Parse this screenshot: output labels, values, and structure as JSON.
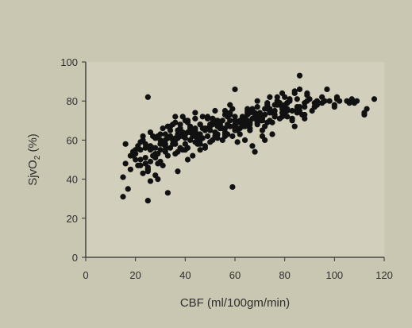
{
  "chart_data": {
    "type": "scatter",
    "title": "",
    "xlabel": "CBF (ml/100gm/min)",
    "ylabel_parts": {
      "main": "SjvO",
      "sub": "2",
      "unit": " (%)"
    },
    "xlim": [
      0,
      120
    ],
    "ylim": [
      0,
      100
    ],
    "x_ticks": [
      "0",
      "20",
      "40",
      "60",
      "80",
      "100",
      "120"
    ],
    "y_ticks": [
      "0",
      "20",
      "40",
      "60",
      "80",
      "100"
    ],
    "grid": false,
    "legend": "none",
    "colors": {
      "background": "#c9c6b2",
      "plot_area": "#d2cfbc",
      "points": "#111111",
      "axis": "#2f2f2f"
    },
    "x": [
      15,
      15,
      16,
      17,
      18,
      19,
      20,
      21,
      22,
      23,
      24,
      25,
      25,
      26,
      27,
      28,
      29,
      30,
      31,
      32,
      33,
      34,
      35,
      36,
      37,
      38,
      39,
      40,
      41,
      42,
      43,
      44,
      45,
      46,
      47,
      48,
      49,
      50,
      51,
      52,
      53,
      54,
      55,
      56,
      57,
      58,
      59,
      60,
      61,
      62,
      63,
      64,
      65,
      66,
      67,
      68,
      69,
      70,
      71,
      72,
      73,
      74,
      75,
      76,
      77,
      78,
      79,
      80,
      81,
      82,
      83,
      84,
      85,
      86,
      88,
      90,
      92,
      95,
      98,
      100,
      105,
      109,
      112,
      116,
      18,
      20,
      22,
      24,
      26,
      28,
      30,
      32,
      34,
      36,
      38,
      40,
      42,
      44,
      46,
      48,
      50,
      52,
      54,
      56,
      58,
      60,
      62,
      64,
      66,
      68,
      70,
      72,
      74,
      76,
      78,
      80,
      22,
      24,
      26,
      28,
      30,
      32,
      34,
      36,
      38,
      40,
      42,
      44,
      46,
      48,
      50,
      52,
      54,
      56,
      58,
      60,
      62,
      64,
      66,
      68,
      70,
      25,
      27,
      29,
      31,
      33,
      35,
      37,
      39,
      41,
      43,
      45,
      47,
      49,
      51,
      53,
      55,
      57,
      59,
      61,
      63,
      65,
      67,
      69,
      71,
      73,
      75,
      77,
      79,
      81,
      83,
      85,
      87,
      89,
      20,
      23,
      26,
      29,
      32,
      35,
      38,
      41,
      44,
      47,
      50,
      53,
      56,
      59,
      62,
      65,
      68,
      71,
      74,
      77,
      80,
      83,
      86,
      89,
      92,
      21,
      25,
      29,
      33,
      37,
      41,
      45,
      49,
      53,
      57,
      61,
      65,
      69,
      73,
      77,
      81,
      85,
      89,
      93,
      97,
      101,
      112,
      16,
      19,
      22,
      25,
      28,
      31,
      34,
      37,
      40,
      43,
      46,
      49,
      52,
      55,
      58,
      61,
      64,
      67,
      70,
      73,
      76,
      79,
      82,
      85,
      88,
      27,
      30,
      33,
      36,
      39,
      42,
      45,
      48,
      51,
      54,
      57,
      60,
      63,
      66,
      69,
      72,
      75,
      78,
      81,
      84,
      24,
      28,
      32,
      36,
      40,
      44,
      48,
      52,
      56,
      60,
      64,
      68,
      72,
      76,
      80,
      84,
      88,
      92,
      96,
      100,
      26,
      31,
      36,
      41,
      46,
      51,
      56,
      61,
      66,
      71,
      76,
      81,
      86,
      91,
      96,
      101,
      106,
      23,
      30,
      37,
      44,
      51,
      58,
      65,
      72,
      79,
      86,
      93,
      107,
      25,
      32,
      39,
      46,
      53,
      60,
      67,
      74,
      81,
      88,
      95,
      102,
      108,
      113
    ],
    "y": [
      31,
      41,
      58,
      35,
      45,
      52,
      50,
      47,
      55,
      62,
      48,
      82,
      29,
      57,
      52,
      61,
      40,
      55,
      66,
      60,
      33,
      67,
      58,
      72,
      63,
      68,
      55,
      70,
      64,
      66,
      52,
      74,
      62,
      68,
      61,
      57,
      72,
      65,
      60,
      75,
      63,
      67,
      70,
      64,
      68,
      78,
      36,
      86,
      66,
      63,
      72,
      60,
      75,
      68,
      57,
      54,
      80,
      70,
      62,
      73,
      78,
      76,
      69,
      75,
      80,
      78,
      74,
      82,
      76,
      80,
      71,
      84,
      74,
      93,
      79,
      81,
      77,
      79,
      80,
      78,
      80,
      80,
      74,
      81,
      52,
      55,
      47,
      58,
      49,
      53,
      63,
      57,
      62,
      60,
      56,
      63,
      60,
      65,
      60,
      66,
      67,
      64,
      68,
      62,
      70,
      68,
      66,
      69,
      65,
      72,
      74,
      67,
      70,
      73,
      71,
      75,
      59,
      51,
      64,
      56,
      60,
      63,
      65,
      58,
      66,
      61,
      67,
      59,
      63,
      65,
      59,
      62,
      66,
      63,
      67,
      70,
      69,
      71,
      66,
      74,
      72,
      44,
      56,
      48,
      58,
      52,
      60,
      54,
      64,
      56,
      62,
      58,
      66,
      62,
      68,
      70,
      66,
      72,
      76,
      69,
      67,
      73,
      71,
      77,
      65,
      79,
      74,
      82,
      72,
      75,
      70,
      77,
      73,
      83,
      53,
      60,
      55,
      62,
      58,
      68,
      62,
      70,
      66,
      72,
      68,
      61,
      75,
      62,
      70,
      76,
      73,
      71,
      74,
      78,
      73,
      75,
      77,
      80,
      79,
      57,
      45,
      53,
      61,
      65,
      69,
      63,
      71,
      67,
      73,
      65,
      74,
      69,
      76,
      79,
      72,
      81,
      84,
      80,
      86,
      81,
      73,
      48,
      54,
      50,
      45,
      51,
      59,
      56,
      61,
      55,
      64,
      58,
      66,
      70,
      60,
      73,
      65,
      67,
      75,
      71,
      69,
      78,
      76,
      81,
      76,
      77,
      62,
      58,
      67,
      61,
      72,
      64,
      60,
      66,
      71,
      68,
      63,
      65,
      70,
      74,
      68,
      60,
      63,
      79,
      79,
      85,
      56,
      42,
      55,
      69,
      58,
      71,
      56,
      64,
      73,
      66,
      69,
      71,
      76,
      72,
      78,
      67,
      71,
      77,
      80,
      77,
      39,
      47,
      53,
      50,
      68,
      69,
      66,
      59,
      69,
      70,
      72,
      79,
      86,
      75,
      80,
      82,
      79,
      43,
      49,
      44,
      62,
      71,
      74,
      70,
      73,
      84,
      75,
      78,
      81,
      46,
      54,
      62,
      55,
      68,
      72,
      76,
      82,
      79,
      73,
      82,
      80,
      79,
      76
    ]
  }
}
